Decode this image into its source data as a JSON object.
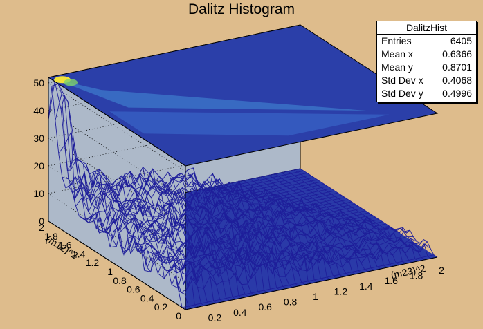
{
  "title": "Dalitz Histogram",
  "stats": {
    "name": "DalitzHist",
    "rows": [
      {
        "label": "Entries",
        "value": "6405"
      },
      {
        "label": "Mean x",
        "value": "0.6366"
      },
      {
        "label": "Mean y",
        "value": "0.8701"
      },
      {
        "label": "Std Dev x",
        "value": "0.4068"
      },
      {
        "label": "Std Dev y",
        "value": "0.4996"
      }
    ]
  },
  "chart_data": {
    "type": "lego3d",
    "title": "Dalitz Histogram",
    "xlabel": "(m23)^2",
    "ylabel": "(m12)^2",
    "xlim": [
      0,
      2
    ],
    "ylim": [
      0,
      2
    ],
    "zlim": [
      0,
      52
    ],
    "xticks": [
      "0.2",
      "0.4",
      "0.6",
      "0.8",
      "1",
      "1.2",
      "1.4",
      "1.6",
      "1.8",
      "2"
    ],
    "yticks": [
      "0",
      "0.2",
      "0.4",
      "0.6",
      "0.8",
      "1",
      "1.2",
      "1.4",
      "1.6",
      "1.8",
      "2"
    ],
    "zticks": [
      "0",
      "10",
      "20",
      "30",
      "40",
      "50"
    ],
    "entries": 6405,
    "peak": {
      "x": 0.05,
      "y": 1.95,
      "z": 48
    },
    "colors": {
      "background": "#debc8c",
      "frame": "#adb9c9",
      "surface": "#1e1e9a",
      "floor": "#1d44b0"
    }
  }
}
